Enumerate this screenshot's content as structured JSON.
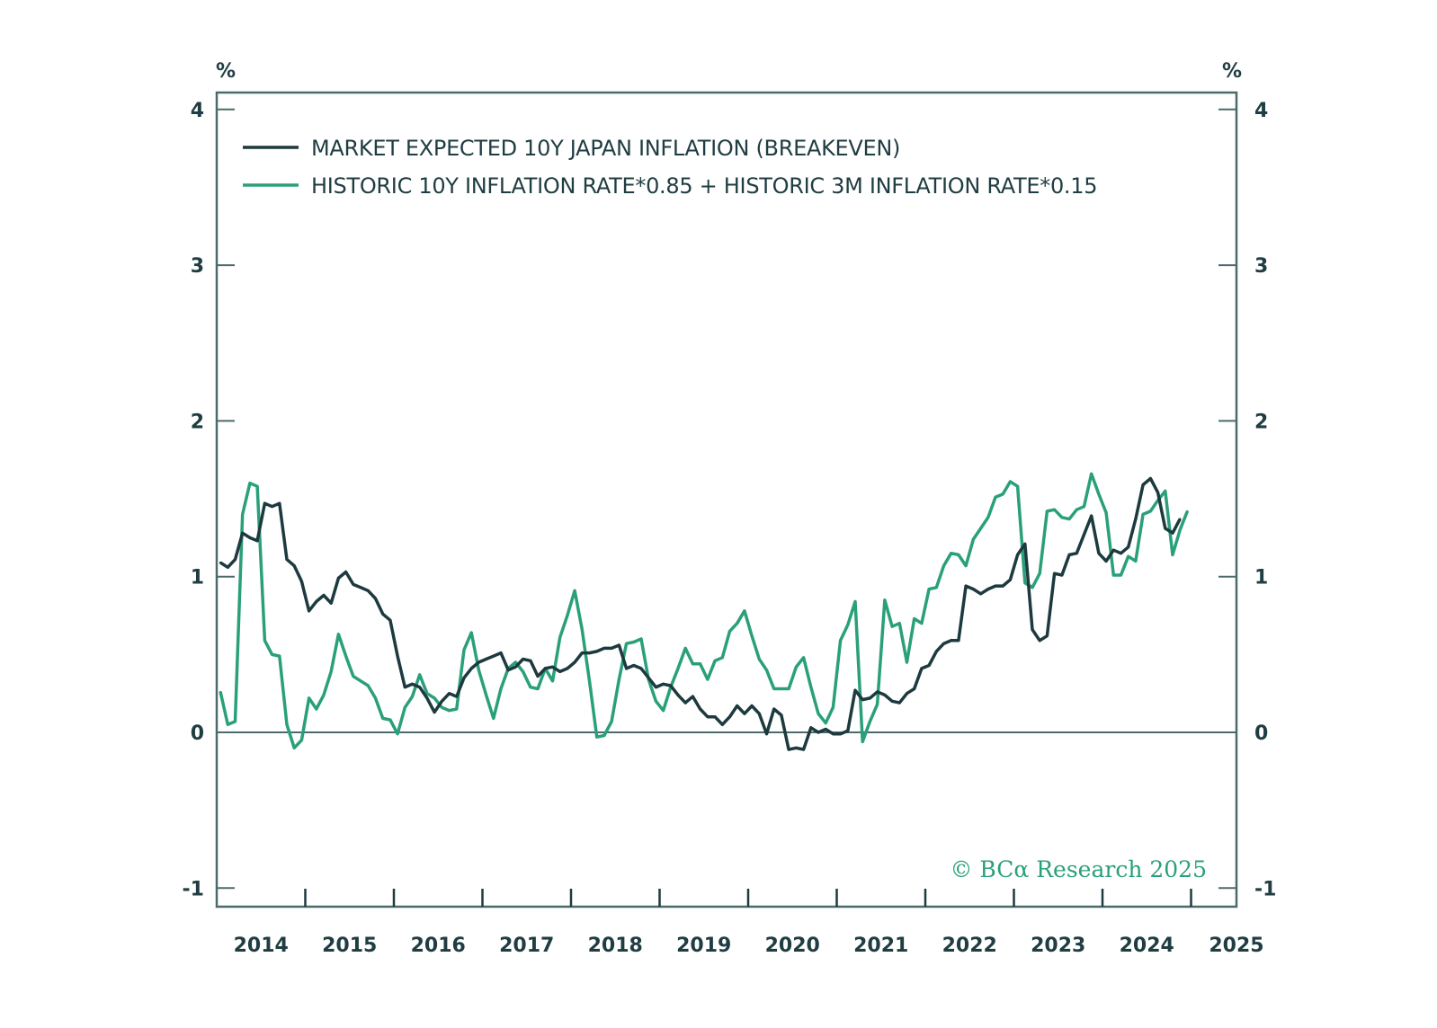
{
  "colors": {
    "frame": "#4d6a6b",
    "text": "#1f3d42",
    "series_dark": "#1d3a3f",
    "series_green": "#2aa07a",
    "copyright": "#2aa07a"
  },
  "copyright": "© BCα Research 2025",
  "chart_data": {
    "type": "line",
    "title": "",
    "xlabel": "",
    "ylabel_left": "%",
    "ylabel_right": "%",
    "xlim": [
      "2014-01",
      "2025-06"
    ],
    "ylim": [
      -1,
      4.1
    ],
    "yticks": [
      -1,
      0,
      1,
      2,
      3,
      4
    ],
    "ytick_labels": [
      "-1",
      "0",
      "1",
      "2",
      "3",
      "4"
    ],
    "xtick_labels": [
      "2014",
      "2015",
      "2016",
      "2017",
      "2018",
      "2019",
      "2020",
      "2021",
      "2022",
      "2023",
      "2024",
      "2025"
    ],
    "grid": false,
    "zero_line": true,
    "legend_position": "top-left",
    "start": "2014-01",
    "frequency": "monthly",
    "series": [
      {
        "name": "MARKET EXPECTED 10Y JAPAN INFLATION (BREAKEVEN)",
        "color_key": "series_dark",
        "values": [
          1.09,
          1.06,
          1.11,
          1.28,
          1.25,
          1.23,
          1.47,
          1.45,
          1.47,
          1.11,
          1.07,
          0.97,
          0.78,
          0.84,
          0.88,
          0.83,
          0.99,
          1.03,
          0.95,
          0.93,
          0.91,
          0.86,
          0.76,
          0.72,
          0.49,
          0.29,
          0.31,
          0.29,
          0.22,
          0.13,
          0.2,
          0.25,
          0.23,
          0.35,
          0.41,
          0.45,
          0.47,
          0.49,
          0.51,
          0.4,
          0.42,
          0.47,
          0.46,
          0.36,
          0.41,
          0.42,
          0.39,
          0.41,
          0.45,
          0.51,
          0.51,
          0.52,
          0.54,
          0.54,
          0.56,
          0.41,
          0.43,
          0.41,
          0.35,
          0.29,
          0.31,
          0.3,
          0.24,
          0.19,
          0.23,
          0.15,
          0.1,
          0.1,
          0.05,
          0.1,
          0.17,
          0.12,
          0.17,
          0.12,
          -0.01,
          0.15,
          0.11,
          -0.11,
          -0.1,
          -0.11,
          0.03,
          0.0,
          0.02,
          -0.01,
          -0.01,
          0.01,
          0.27,
          0.21,
          0.22,
          0.26,
          0.24,
          0.2,
          0.19,
          0.25,
          0.28,
          0.41,
          0.43,
          0.52,
          0.57,
          0.59,
          0.59,
          0.94,
          0.92,
          0.89,
          0.92,
          0.94,
          0.94,
          0.98,
          1.14,
          1.21,
          0.66,
          0.59,
          0.62,
          1.02,
          1.01,
          1.14,
          1.15,
          1.27,
          1.39,
          1.15,
          1.1,
          1.17,
          1.15,
          1.19,
          1.37,
          1.59,
          1.63,
          1.54,
          1.31,
          1.28,
          1.37
        ]
      },
      {
        "name": "HISTORIC 10Y INFLATION RATE*0.85 + HISTORIC 3M INFLATION RATE*0.15",
        "color_key": "series_green",
        "values": [
          0.26,
          0.05,
          0.07,
          1.4,
          1.6,
          1.58,
          0.59,
          0.5,
          0.49,
          0.05,
          -0.1,
          -0.05,
          0.22,
          0.15,
          0.24,
          0.39,
          0.63,
          0.49,
          0.36,
          0.33,
          0.3,
          0.22,
          0.09,
          0.08,
          -0.01,
          0.16,
          0.23,
          0.37,
          0.25,
          0.22,
          0.16,
          0.14,
          0.15,
          0.53,
          0.64,
          0.4,
          0.24,
          0.09,
          0.28,
          0.41,
          0.45,
          0.39,
          0.29,
          0.28,
          0.41,
          0.33,
          0.61,
          0.75,
          0.91,
          0.66,
          0.33,
          -0.03,
          -0.02,
          0.07,
          0.34,
          0.57,
          0.58,
          0.6,
          0.34,
          0.2,
          0.14,
          0.29,
          0.41,
          0.54,
          0.44,
          0.44,
          0.34,
          0.46,
          0.48,
          0.65,
          0.7,
          0.78,
          0.62,
          0.47,
          0.4,
          0.28,
          0.28,
          0.28,
          0.42,
          0.48,
          0.29,
          0.12,
          0.06,
          0.16,
          0.59,
          0.69,
          0.84,
          -0.06,
          0.07,
          0.18,
          0.85,
          0.68,
          0.7,
          0.45,
          0.73,
          0.7,
          0.92,
          0.93,
          1.07,
          1.15,
          1.14,
          1.07,
          1.24,
          1.31,
          1.38,
          1.51,
          1.53,
          1.61,
          1.58,
          0.96,
          0.93,
          1.02,
          1.42,
          1.43,
          1.38,
          1.37,
          1.43,
          1.45,
          1.66,
          1.53,
          1.41,
          1.01,
          1.01,
          1.13,
          1.1,
          1.4,
          1.42,
          1.49,
          1.55,
          1.14,
          1.3,
          1.42
        ]
      }
    ]
  }
}
